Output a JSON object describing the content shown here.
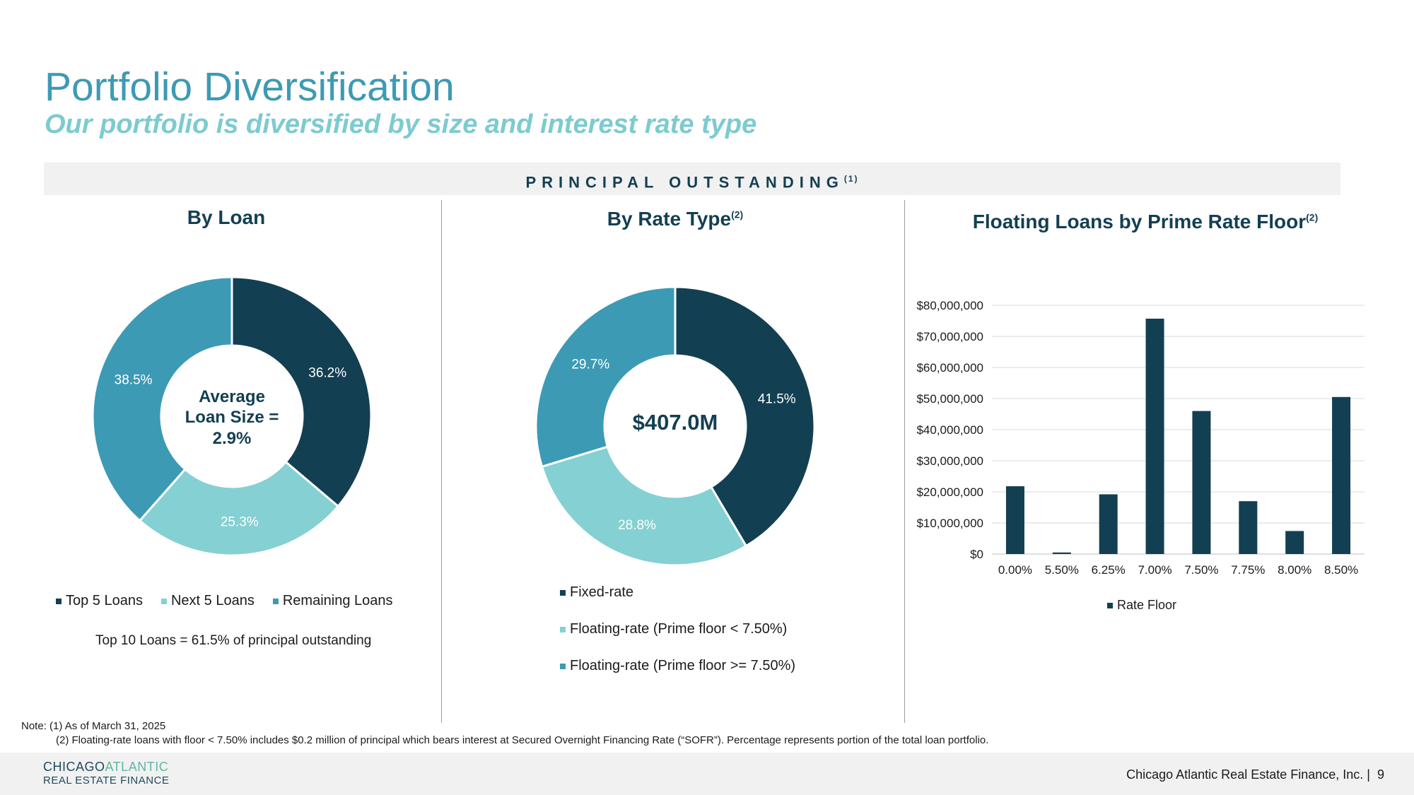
{
  "header": {
    "title": "Portfolio Diversification",
    "subtitle": "Our portfolio is diversified by size and interest rate type",
    "banner": "PRINCIPAL OUTSTANDING",
    "banner_sup": "(1)"
  },
  "panels": {
    "by_loan": {
      "title": "By Loan",
      "center_lines": [
        "Average",
        "Loan Size =",
        "2.9%"
      ],
      "note": "Top 10 Loans = 61.5% of principal outstanding"
    },
    "by_rate": {
      "title": "By Rate Type",
      "title_sup": "(2)",
      "center": "$407.0M"
    },
    "floor": {
      "title": "Floating Loans by Prime Rate Floor",
      "title_sup": "(2)"
    }
  },
  "chart_data": [
    {
      "type": "pie",
      "title": "By Loan",
      "categories": [
        "Top 5 Loans",
        "Next 5 Loans",
        "Remaining Loans"
      ],
      "values": [
        36.2,
        25.3,
        38.5
      ],
      "labels": [
        "36.2%",
        "25.3%",
        "38.5%"
      ],
      "colors": [
        "#133f52",
        "#85d0d2",
        "#3d9ab5"
      ],
      "legend_position": "bottom"
    },
    {
      "type": "pie",
      "title": "By Rate Type",
      "categories": [
        "Fixed-rate",
        "Floating-rate (Prime floor < 7.50%)",
        "Floating-rate (Prime floor >= 7.50%)"
      ],
      "values": [
        41.5,
        28.8,
        29.7
      ],
      "labels": [
        "41.5%",
        "28.8%",
        "29.7%"
      ],
      "colors": [
        "#133f52",
        "#85d0d2",
        "#3d9ab5"
      ],
      "legend_position": "bottom"
    },
    {
      "type": "bar",
      "title": "Floating Loans by Prime Rate Floor",
      "categories": [
        "0.00%",
        "5.50%",
        "6.25%",
        "7.00%",
        "7.50%",
        "7.75%",
        "8.00%",
        "8.50%"
      ],
      "series": [
        {
          "name": "Rate Floor",
          "values": [
            21800000,
            500000,
            19200000,
            75700000,
            46000000,
            17000000,
            7400000,
            50500000
          ]
        }
      ],
      "yticks": [
        "$0",
        "$10,000,000",
        "$20,000,000",
        "$30,000,000",
        "$40,000,000",
        "$50,000,000",
        "$60,000,000",
        "$70,000,000",
        "$80,000,000"
      ],
      "ylim": [
        0,
        80000000
      ],
      "grid": true,
      "color": "#133f52",
      "legend_position": "bottom"
    }
  ],
  "notes": {
    "note1": "Note: (1) As of March 31, 2025",
    "note2": "(2) Floating-rate loans with floor < 7.50% includes $0.2 million of principal which bears interest at Secured Overnight Financing Rate (“SOFR”). Percentage represents portion of the total loan portfolio."
  },
  "footer": {
    "logo_word1": "CHICAGO",
    "logo_word2": "ATLANTIC",
    "logo_line2": "REAL ESTATE FINANCE",
    "company": "Chicago Atlantic Real Estate Finance, Inc. |",
    "page": "9"
  }
}
